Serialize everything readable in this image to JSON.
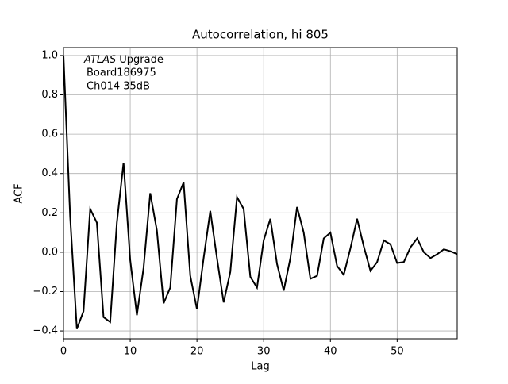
{
  "chart_data": {
    "type": "line",
    "title": "Autocorrelation, hi 805",
    "xlabel": "Lag",
    "ylabel": "ACF",
    "annotation": {
      "experiment": "ATLAS",
      "label": "Upgrade",
      "lines": [
        "Board186975",
        "Ch014 35dB"
      ]
    },
    "x": [
      0,
      1,
      2,
      3,
      4,
      5,
      6,
      7,
      8,
      9,
      10,
      11,
      12,
      13,
      14,
      15,
      16,
      17,
      18,
      19,
      20,
      21,
      22,
      23,
      24,
      25,
      26,
      27,
      28,
      29,
      30,
      31,
      32,
      33,
      34,
      35,
      36,
      37,
      38,
      39,
      40,
      41,
      42,
      43,
      44,
      45,
      46,
      47,
      48,
      49,
      50,
      51,
      52,
      53,
      54,
      55,
      56,
      57,
      58,
      59
    ],
    "series": [
      {
        "name": "ACF",
        "color": "#000000",
        "values": [
          1.0,
          0.18,
          -0.39,
          -0.3,
          0.22,
          0.15,
          -0.33,
          -0.355,
          0.15,
          0.455,
          -0.04,
          -0.32,
          -0.08,
          0.3,
          0.11,
          -0.26,
          -0.18,
          0.27,
          0.355,
          -0.12,
          -0.29,
          -0.03,
          0.21,
          -0.03,
          -0.255,
          -0.1,
          0.28,
          0.22,
          -0.125,
          -0.18,
          0.06,
          0.17,
          -0.06,
          -0.195,
          -0.03,
          0.23,
          0.1,
          -0.135,
          -0.12,
          0.07,
          0.1,
          -0.07,
          -0.115,
          0.02,
          0.17,
          0.03,
          -0.095,
          -0.05,
          0.06,
          0.04,
          -0.055,
          -0.05,
          0.025,
          0.07,
          0.0,
          -0.03,
          -0.01,
          0.015,
          0.005,
          -0.01
        ]
      }
    ],
    "xlim": [
      0,
      59
    ],
    "ylim": [
      -0.44,
      1.04
    ],
    "xticks": [
      0,
      10,
      20,
      30,
      40,
      50
    ],
    "yticks": [
      {
        "value": -0.4,
        "label": "−0.4"
      },
      {
        "value": -0.2,
        "label": "−0.2"
      },
      {
        "value": 0,
        "label": "0.0"
      },
      0.2,
      0.4,
      0.6,
      0.8,
      {
        "value": 1,
        "label": "1.0"
      }
    ],
    "grid": true
  }
}
